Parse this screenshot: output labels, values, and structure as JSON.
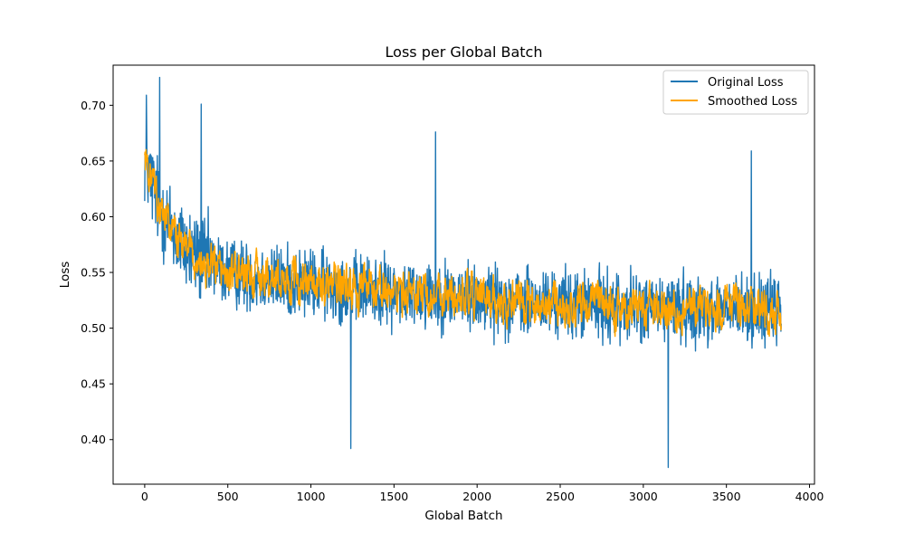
{
  "chart_data": {
    "type": "line",
    "title": "Loss per Global Batch",
    "xlabel": "Global Batch",
    "ylabel": "Loss",
    "xlim": [
      -190,
      4030
    ],
    "ylim": [
      0.36,
      0.736
    ],
    "xticks": [
      0,
      500,
      1000,
      1500,
      2000,
      2500,
      3000,
      3500,
      4000
    ],
    "yticks": [
      0.4,
      0.45,
      0.5,
      0.55,
      0.6,
      0.65,
      0.7
    ],
    "ytick_labels": [
      "0.40",
      "0.45",
      "0.50",
      "0.55",
      "0.60",
      "0.65",
      "0.70"
    ],
    "grid": false,
    "legend": "top-right",
    "x_max_batch": 3830,
    "series": [
      {
        "name": "Original Loss",
        "color": "#1f77b4",
        "trend": {
          "x": [
            0,
            100,
            200,
            300,
            500,
            700,
            1000,
            1300,
            1500,
            1800,
            2000,
            2300,
            2500,
            2800,
            3000,
            3300,
            3500,
            3830
          ],
          "y": [
            0.65,
            0.605,
            0.58,
            0.565,
            0.55,
            0.545,
            0.54,
            0.535,
            0.532,
            0.53,
            0.527,
            0.522,
            0.522,
            0.52,
            0.518,
            0.518,
            0.517,
            0.516
          ]
        },
        "noise_amplitude": 0.045,
        "noteworthy_points": [
          {
            "x": 10,
            "y": 0.709
          },
          {
            "x": 90,
            "y": 0.725
          },
          {
            "x": 340,
            "y": 0.701
          },
          {
            "x": 1240,
            "y": 0.392
          },
          {
            "x": 1750,
            "y": 0.676
          },
          {
            "x": 3150,
            "y": 0.375
          },
          {
            "x": 3650,
            "y": 0.659
          }
        ]
      },
      {
        "name": "Smoothed Loss",
        "color": "#ffa500",
        "trend": {
          "x": [
            0,
            100,
            200,
            300,
            500,
            700,
            1000,
            1300,
            1500,
            1800,
            2000,
            2300,
            2500,
            2800,
            3000,
            3300,
            3500,
            3830
          ],
          "y": [
            0.655,
            0.6,
            0.58,
            0.56,
            0.548,
            0.545,
            0.54,
            0.535,
            0.533,
            0.53,
            0.527,
            0.522,
            0.522,
            0.52,
            0.518,
            0.518,
            0.517,
            0.516
          ]
        },
        "noise_amplitude": 0.016
      }
    ]
  }
}
